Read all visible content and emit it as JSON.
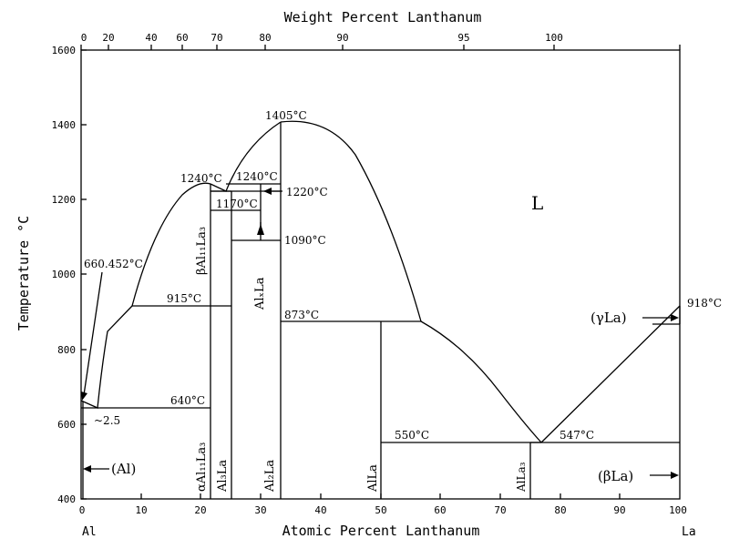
{
  "chart_data": {
    "type": "diagram",
    "title": "",
    "bottom_axis": {
      "label": "Atomic Percent Lanthanum",
      "range": [
        0,
        100
      ],
      "ticks": [
        "0",
        "10",
        "20",
        "30",
        "40",
        "50",
        "60",
        "70",
        "80",
        "90",
        "100"
      ]
    },
    "top_axis": {
      "label": "Weight Percent Lanthanum",
      "ticks": [
        "0",
        "20",
        "40",
        "60",
        "70",
        "80",
        "90",
        "95",
        "100"
      ]
    },
    "left_axis": {
      "label": "Temperature °C",
      "range": [
        400,
        1600
      ],
      "ticks": [
        "400",
        "600",
        "800",
        "1000",
        "1200",
        "1400",
        "1600"
      ]
    },
    "element_labels": {
      "left": "Al",
      "right": "La"
    },
    "phase_labels": {
      "liquid": "L",
      "al_solid": "(Al)",
      "gamma_la": "(γLa)",
      "beta_la": "(βLa)",
      "beta_al11la3": "βAl₁₁La₃",
      "alpha_al11la3": "αAl₁₁La₃",
      "al3la": "Al₃La",
      "alxla": "AlₓLa",
      "al2la": "Al₂La",
      "alla": "AlLa",
      "alla3": "AlLa₃"
    },
    "annotations": {
      "t1405": "1405°C",
      "t1240a": "1240°C",
      "t1240b": "1240°C",
      "t1220": "1220°C",
      "t1170": "1170°C",
      "t1090": "1090°C",
      "t915": "915°C",
      "t873": "873°C",
      "t918": "918°C",
      "t660": "660.452°C",
      "t640": "640°C",
      "t550": "550°C",
      "t547": "547°C",
      "approx": "~2.5"
    }
  }
}
